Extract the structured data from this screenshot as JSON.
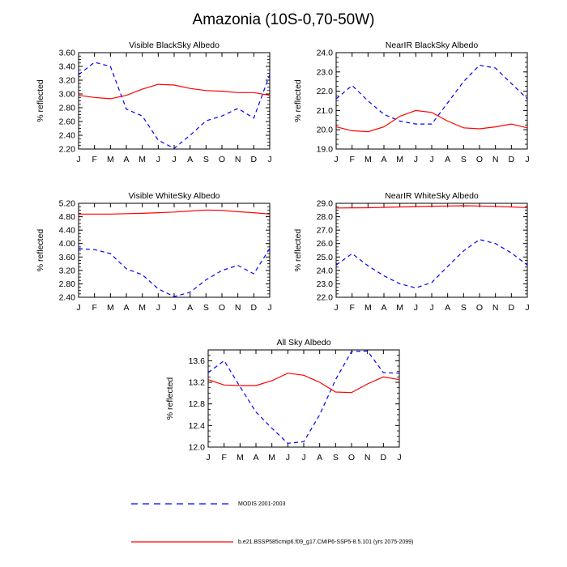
{
  "title": "Amazonia (10S-0,70-50W)",
  "colors": {
    "modis": "#0000ff",
    "model": "#ff0000"
  },
  "legend": {
    "modis": "MODIS 2001-2003",
    "model": "b.e21.BSSP585cmip6.f09_g17.CMIP6-SSP5-8.5.101 (yrs 2075-2099)"
  },
  "chart_data": [
    {
      "type": "line",
      "title": "Visible BlackSky Albedo",
      "ylabel": "% reflected",
      "x": [
        "J",
        "F",
        "M",
        "A",
        "M",
        "J",
        "J",
        "A",
        "S",
        "O",
        "N",
        "D",
        "J"
      ],
      "ylim": [
        2.2,
        3.6
      ],
      "yticks": [
        2.2,
        2.4,
        2.6,
        2.8,
        3.0,
        3.2,
        3.4,
        3.6
      ],
      "ytick_labels": [
        "2.20",
        "2.40",
        "2.60",
        "2.80",
        "3.00",
        "3.20",
        "3.40",
        "3.60"
      ],
      "series": [
        {
          "name": "MODIS 2001-2003",
          "style": "dashed",
          "color": "#0000ff",
          "values": [
            3.28,
            3.46,
            3.4,
            2.78,
            2.68,
            2.33,
            2.21,
            2.4,
            2.61,
            2.68,
            2.79,
            2.65,
            3.28
          ]
        },
        {
          "name": "b.e21.BSSP585cmip6.f09_g17.CMIP6-SSP5-8.5.101 (yrs 2075-2099)",
          "style": "solid",
          "color": "#ff0000",
          "values": [
            2.98,
            2.95,
            2.93,
            2.98,
            3.07,
            3.14,
            3.13,
            3.08,
            3.05,
            3.04,
            3.02,
            3.02,
            2.98
          ]
        }
      ]
    },
    {
      "type": "line",
      "title": "NearIR BlackSky Albedo",
      "ylabel": "% reflected",
      "x": [
        "J",
        "F",
        "M",
        "A",
        "M",
        "J",
        "J",
        "A",
        "S",
        "O",
        "N",
        "D",
        "J"
      ],
      "ylim": [
        19.0,
        24.0
      ],
      "yticks": [
        19,
        20,
        21,
        22,
        23,
        24
      ],
      "ytick_labels": [
        "19.0",
        "20.0",
        "21.0",
        "22.0",
        "23.0",
        "24.0"
      ],
      "series": [
        {
          "name": "MODIS 2001-2003",
          "style": "dashed",
          "color": "#0000ff",
          "values": [
            21.6,
            22.3,
            21.5,
            20.8,
            20.45,
            20.3,
            20.3,
            21.4,
            22.5,
            23.35,
            23.2,
            22.4,
            21.6
          ]
        },
        {
          "name": "b.e21.BSSP585cmip6.f09_g17.CMIP6-SSP5-8.5.101 (yrs 2075-2099)",
          "style": "solid",
          "color": "#ff0000",
          "values": [
            20.15,
            19.95,
            19.9,
            20.15,
            20.7,
            21.0,
            20.9,
            20.45,
            20.1,
            20.05,
            20.15,
            20.3,
            20.1
          ]
        }
      ]
    },
    {
      "type": "line",
      "title": "Visible WhiteSky Albedo",
      "ylabel": "% reflected",
      "x": [
        "J",
        "F",
        "M",
        "A",
        "M",
        "J",
        "J",
        "A",
        "S",
        "O",
        "N",
        "D",
        "J"
      ],
      "ylim": [
        2.4,
        5.2
      ],
      "yticks": [
        2.4,
        2.8,
        3.2,
        3.6,
        4.0,
        4.4,
        4.8,
        5.2
      ],
      "ytick_labels": [
        "2.40",
        "2.80",
        "3.20",
        "3.60",
        "4.00",
        "4.40",
        "4.80",
        "5.20"
      ],
      "series": [
        {
          "name": "MODIS 2001-2003",
          "style": "dashed",
          "color": "#0000ff",
          "values": [
            3.85,
            3.82,
            3.7,
            3.25,
            3.07,
            2.65,
            2.42,
            2.55,
            2.92,
            3.2,
            3.35,
            3.1,
            3.85
          ]
        },
        {
          "name": "b.e21.BSSP585cmip6.f09_g17.CMIP6-SSP5-8.5.101 (yrs 2075-2099)",
          "style": "solid",
          "color": "#ff0000",
          "values": [
            4.88,
            4.88,
            4.88,
            4.89,
            4.9,
            4.92,
            4.94,
            4.97,
            5.0,
            4.99,
            4.95,
            4.92,
            4.88
          ]
        }
      ]
    },
    {
      "type": "line",
      "title": "NearIR WhiteSky Albedo",
      "ylabel": "% reflected",
      "x": [
        "J",
        "F",
        "M",
        "A",
        "M",
        "J",
        "J",
        "A",
        "S",
        "O",
        "N",
        "D",
        "J"
      ],
      "ylim": [
        22.0,
        29.0
      ],
      "yticks": [
        22,
        23,
        24,
        25,
        26,
        27,
        28,
        29
      ],
      "ytick_labels": [
        "22.0",
        "23.0",
        "24.0",
        "25.0",
        "26.0",
        "27.0",
        "28.0",
        "29.0"
      ],
      "series": [
        {
          "name": "MODIS 2001-2003",
          "style": "dashed",
          "color": "#0000ff",
          "values": [
            24.4,
            25.25,
            24.35,
            23.6,
            23.0,
            22.7,
            23.1,
            24.3,
            25.45,
            26.3,
            26.0,
            25.3,
            24.4
          ]
        },
        {
          "name": "b.e21.BSSP585cmip6.f09_g17.CMIP6-SSP5-8.5.101 (yrs 2075-2099)",
          "style": "solid",
          "color": "#ff0000",
          "values": [
            28.65,
            28.66,
            28.67,
            28.7,
            28.73,
            28.76,
            28.78,
            28.8,
            28.82,
            28.8,
            28.77,
            28.73,
            28.68
          ]
        }
      ]
    },
    {
      "type": "line",
      "title": "All Sky Albedo",
      "ylabel": "% reflected",
      "x": [
        "J",
        "F",
        "M",
        "A",
        "M",
        "J",
        "J",
        "A",
        "S",
        "O",
        "N",
        "D",
        "J"
      ],
      "ylim": [
        12.0,
        13.8
      ],
      "yticks": [
        12.0,
        12.4,
        12.8,
        13.2,
        13.6
      ],
      "ytick_labels": [
        "12.0",
        "12.4",
        "12.8",
        "13.2",
        "13.6"
      ],
      "series": [
        {
          "name": "MODIS 2001-2003",
          "style": "dashed",
          "color": "#0000ff",
          "values": [
            13.38,
            13.6,
            13.12,
            12.65,
            12.35,
            12.07,
            12.1,
            12.6,
            13.25,
            13.77,
            13.78,
            13.38,
            13.37
          ]
        },
        {
          "name": "b.e21.BSSP585cmip6.f09_g17.CMIP6-SSP5-8.5.101 (yrs 2075-2099)",
          "style": "solid",
          "color": "#ff0000",
          "values": [
            13.25,
            13.15,
            13.14,
            13.14,
            13.23,
            13.37,
            13.33,
            13.2,
            13.02,
            13.01,
            13.17,
            13.3,
            13.25
          ]
        }
      ]
    }
  ]
}
